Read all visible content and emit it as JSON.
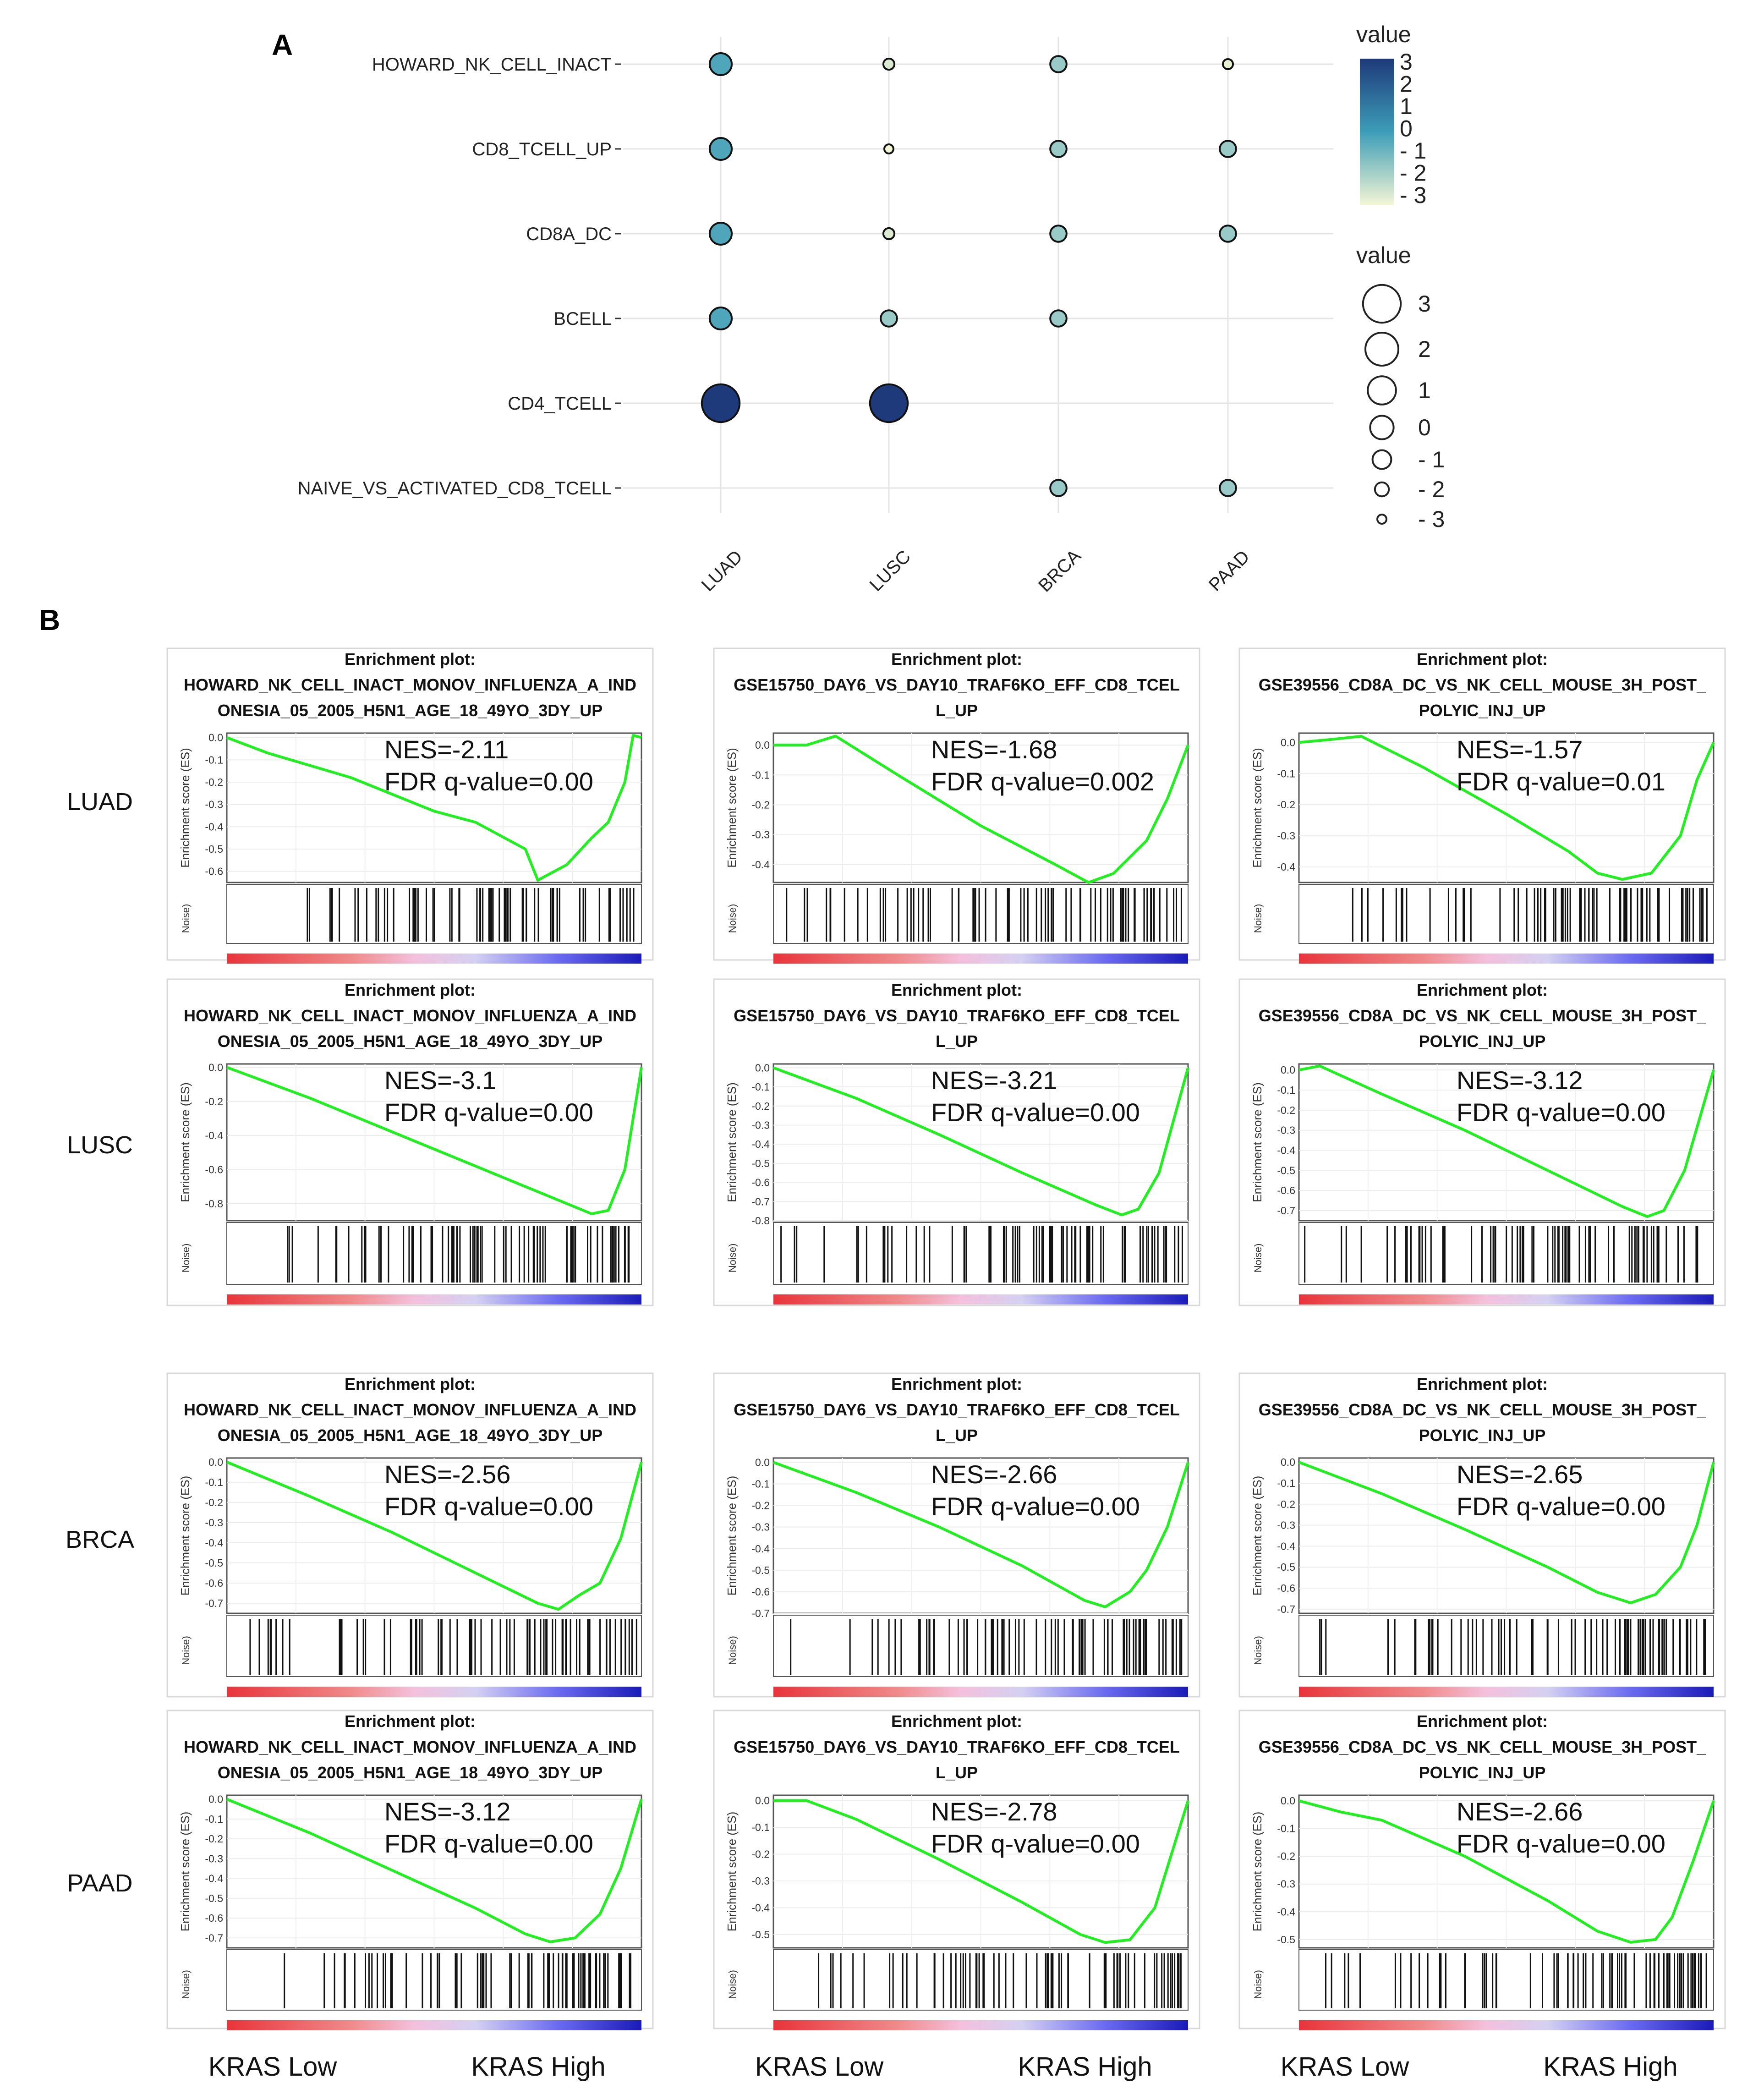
{
  "figure": {
    "panel_a_label": "A",
    "panel_b_label": "B"
  },
  "chart_data": [
    {
      "type": "scatter",
      "subtype": "bubble",
      "title": "",
      "xlabel": "",
      "ylabel": "",
      "categories_x": [
        "LUAD",
        "LUSC",
        "BRCA",
        "PAAD"
      ],
      "categories_y": [
        "HOWARD_NK_CELL_INACT",
        "CD8_TCELL_UP",
        "CD8A_DC",
        "BCELL",
        "CD4_TCELL",
        "NAIVE_VS_ACTIVATED_CD8_TCELL"
      ],
      "points": [
        {
          "x": "LUAD",
          "y": "HOWARD_NK_CELL_INACT",
          "value": -0.3
        },
        {
          "x": "LUSC",
          "y": "HOWARD_NK_CELL_INACT",
          "value": -2.6
        },
        {
          "x": "BRCA",
          "y": "HOWARD_NK_CELL_INACT",
          "value": -1.5
        },
        {
          "x": "PAAD",
          "y": "HOWARD_NK_CELL_INACT",
          "value": -2.8
        },
        {
          "x": "LUAD",
          "y": "CD8_TCELL_UP",
          "value": -0.3
        },
        {
          "x": "LUSC",
          "y": "CD8_TCELL_UP",
          "value": -3.0
        },
        {
          "x": "BRCA",
          "y": "CD8_TCELL_UP",
          "value": -1.5
        },
        {
          "x": "PAAD",
          "y": "CD8_TCELL_UP",
          "value": -1.5
        },
        {
          "x": "LUAD",
          "y": "CD8A_DC",
          "value": -0.3
        },
        {
          "x": "LUSC",
          "y": "CD8A_DC",
          "value": -2.6
        },
        {
          "x": "BRCA",
          "y": "CD8A_DC",
          "value": -1.5
        },
        {
          "x": "PAAD",
          "y": "CD8A_DC",
          "value": -1.5
        },
        {
          "x": "LUAD",
          "y": "BCELL",
          "value": -0.3
        },
        {
          "x": "LUSC",
          "y": "BCELL",
          "value": -1.5
        },
        {
          "x": "BRCA",
          "y": "BCELL",
          "value": -1.5
        },
        {
          "x": "LUAD",
          "y": "CD4_TCELL",
          "value": 3.0
        },
        {
          "x": "LUSC",
          "y": "CD4_TCELL",
          "value": 3.0
        },
        {
          "x": "BRCA",
          "y": "NAIVE_VS_ACTIVATED_CD8_TCELL",
          "value": -1.5
        },
        {
          "x": "PAAD",
          "y": "NAIVE_VS_ACTIVATED_CD8_TCELL",
          "value": -1.5
        }
      ],
      "legend_color": {
        "title": "value",
        "ticks": [
          "3",
          "2",
          "1",
          "0",
          "- 1",
          "- 2",
          "- 3"
        ],
        "range": [
          -3,
          3
        ],
        "low_color": "#f4f6d6",
        "mid_color": "#3d9db8",
        "high_color": "#1e3a7a"
      },
      "legend_size": {
        "title": "value",
        "labels": [
          "3",
          "2",
          "1",
          "0",
          "- 1",
          "- 2",
          "- 3"
        ],
        "values": [
          3,
          2,
          1,
          0,
          -1,
          -2,
          -3
        ]
      }
    },
    {
      "type": "line",
      "subtype": "gsea-enrichment-grid",
      "row_labels": [
        "LUAD",
        "LUSC",
        "BRCA",
        "PAAD"
      ],
      "column_titles": [
        [
          "Enrichment plot:",
          "HOWARD_NK_CELL_INACT_MONOV_INFLUENZA_A_IND",
          "ONESIA_05_2005_H5N1_AGE_18_49YO_3DY_UP"
        ],
        [
          "Enrichment plot:",
          "GSE15750_DAY6_VS_DAY10_TRAF6KO_EFF_CD8_TCEL",
          "L_UP"
        ],
        [
          "Enrichment plot:",
          "GSE39556_CD8A_DC_VS_NK_CELL_MOUSE_3H_POST_",
          "POLYIC_INJ_UP"
        ]
      ],
      "ylabel": "Enrichment score (ES)",
      "noise_label": "Noise)",
      "x_labels": [
        "KRAS Low",
        "KRAS High"
      ],
      "curve_color": "#22ee22",
      "panels": [
        {
          "row": "LUAD",
          "col": 0,
          "nes_text": "NES=-2.11",
          "fdr_text": "FDR q-value=0.00",
          "y_ticks": [
            "0.0",
            "-0.1",
            "-0.2",
            "-0.3",
            "-0.4",
            "-0.5",
            "-0.6"
          ],
          "ymin": -0.65,
          "ymax": 0.02,
          "curve_x": [
            0,
            0.1,
            0.3,
            0.5,
            0.6,
            0.72,
            0.75,
            0.82,
            0.88,
            0.92,
            0.96,
            0.98,
            1.0
          ],
          "curve_y": [
            0,
            -0.07,
            -0.18,
            -0.33,
            -0.38,
            -0.5,
            -0.64,
            -0.57,
            -0.45,
            -0.38,
            -0.2,
            0.01,
            0
          ]
        },
        {
          "row": "LUAD",
          "col": 1,
          "nes_text": "NES=-1.68",
          "fdr_text": "FDR q-value=0.002",
          "y_ticks": [
            "0.0",
            "-0.1",
            "-0.2",
            "-0.3",
            "-0.4"
          ],
          "ymin": -0.46,
          "ymax": 0.04,
          "curve_x": [
            0,
            0.08,
            0.15,
            0.3,
            0.5,
            0.68,
            0.76,
            0.82,
            0.9,
            0.95,
            1.0
          ],
          "curve_y": [
            0,
            0,
            0.03,
            -0.1,
            -0.27,
            -0.4,
            -0.46,
            -0.43,
            -0.32,
            -0.18,
            0
          ]
        },
        {
          "row": "LUAD",
          "col": 2,
          "nes_text": "NES=-1.57",
          "fdr_text": "FDR q-value=0.01",
          "y_ticks": [
            "0.0",
            "-0.1",
            "-0.2",
            "-0.3",
            "-0.4"
          ],
          "ymin": -0.45,
          "ymax": 0.03,
          "curve_x": [
            0,
            0.08,
            0.15,
            0.3,
            0.5,
            0.65,
            0.72,
            0.78,
            0.85,
            0.92,
            0.96,
            1.0
          ],
          "curve_y": [
            0,
            0.01,
            0.02,
            -0.08,
            -0.23,
            -0.35,
            -0.42,
            -0.44,
            -0.42,
            -0.3,
            -0.12,
            0
          ]
        },
        {
          "row": "LUSC",
          "col": 0,
          "nes_text": "NES=-3.1",
          "fdr_text": "FDR q-value=0.00",
          "y_ticks": [
            "0.0",
            "-0.2",
            "-0.4",
            "-0.6",
            "-0.8"
          ],
          "ymin": -0.9,
          "ymax": 0.02,
          "curve_x": [
            0,
            0.2,
            0.4,
            0.6,
            0.8,
            0.88,
            0.92,
            0.96,
            1.0
          ],
          "curve_y": [
            0,
            -0.18,
            -0.38,
            -0.58,
            -0.78,
            -0.86,
            -0.84,
            -0.6,
            0
          ]
        },
        {
          "row": "LUSC",
          "col": 1,
          "nes_text": "NES=-3.21",
          "fdr_text": "FDR q-value=0.00",
          "y_ticks": [
            "0.0",
            "-0.1",
            "-0.2",
            "-0.3",
            "-0.4",
            "-0.5",
            "-0.6",
            "-0.7",
            "-0.8"
          ],
          "ymin": -0.8,
          "ymax": 0.02,
          "curve_x": [
            0,
            0.2,
            0.4,
            0.6,
            0.78,
            0.84,
            0.88,
            0.93,
            1.0
          ],
          "curve_y": [
            0,
            -0.16,
            -0.35,
            -0.55,
            -0.72,
            -0.77,
            -0.74,
            -0.55,
            0
          ]
        },
        {
          "row": "LUSC",
          "col": 2,
          "nes_text": "NES=-3.12",
          "fdr_text": "FDR q-value=0.00",
          "y_ticks": [
            "0.0",
            "-0.1",
            "-0.2",
            "-0.3",
            "-0.4",
            "-0.5",
            "-0.6",
            "-0.7"
          ],
          "ymin": -0.75,
          "ymax": 0.03,
          "curve_x": [
            0,
            0.05,
            0.2,
            0.4,
            0.6,
            0.78,
            0.84,
            0.88,
            0.93,
            1.0
          ],
          "curve_y": [
            0,
            0.02,
            -0.12,
            -0.3,
            -0.5,
            -0.68,
            -0.73,
            -0.7,
            -0.5,
            0
          ]
        },
        {
          "row": "BRCA",
          "col": 0,
          "nes_text": "NES=-2.56",
          "fdr_text": "FDR q-value=0.00",
          "y_ticks": [
            "0.0",
            "-0.1",
            "-0.2",
            "-0.3",
            "-0.4",
            "-0.5",
            "-0.6",
            "-0.7"
          ],
          "ymin": -0.75,
          "ymax": 0.02,
          "curve_x": [
            0,
            0.2,
            0.4,
            0.6,
            0.75,
            0.8,
            0.85,
            0.9,
            0.95,
            1.0
          ],
          "curve_y": [
            0,
            -0.17,
            -0.35,
            -0.55,
            -0.7,
            -0.73,
            -0.66,
            -0.6,
            -0.38,
            0
          ]
        },
        {
          "row": "BRCA",
          "col": 1,
          "nes_text": "NES=-2.66",
          "fdr_text": "FDR q-value=0.00",
          "y_ticks": [
            "0.0",
            "-0.1",
            "-0.2",
            "-0.3",
            "-0.4",
            "-0.5",
            "-0.6",
            "-0.7"
          ],
          "ymin": -0.7,
          "ymax": 0.02,
          "curve_x": [
            0,
            0.2,
            0.4,
            0.6,
            0.75,
            0.8,
            0.86,
            0.9,
            0.95,
            1.0
          ],
          "curve_y": [
            0,
            -0.14,
            -0.3,
            -0.48,
            -0.64,
            -0.67,
            -0.6,
            -0.5,
            -0.3,
            0
          ]
        },
        {
          "row": "BRCA",
          "col": 2,
          "nes_text": "NES=-2.65",
          "fdr_text": "FDR q-value=0.00",
          "y_ticks": [
            "0.0",
            "-0.1",
            "-0.2",
            "-0.3",
            "-0.4",
            "-0.5",
            "-0.6",
            "-0.7"
          ],
          "ymin": -0.72,
          "ymax": 0.02,
          "curve_x": [
            0,
            0.2,
            0.4,
            0.6,
            0.72,
            0.8,
            0.86,
            0.92,
            0.96,
            1.0
          ],
          "curve_y": [
            0,
            -0.15,
            -0.32,
            -0.5,
            -0.62,
            -0.67,
            -0.63,
            -0.5,
            -0.3,
            0
          ]
        },
        {
          "row": "PAAD",
          "col": 0,
          "nes_text": "NES=-3.12",
          "fdr_text": "FDR q-value=0.00",
          "y_ticks": [
            "0.0",
            "-0.1",
            "-0.2",
            "-0.3",
            "-0.4",
            "-0.5",
            "-0.6",
            "-0.7"
          ],
          "ymin": -0.75,
          "ymax": 0.02,
          "curve_x": [
            0,
            0.2,
            0.4,
            0.6,
            0.72,
            0.78,
            0.84,
            0.9,
            0.95,
            1.0
          ],
          "curve_y": [
            0,
            -0.17,
            -0.36,
            -0.55,
            -0.68,
            -0.72,
            -0.7,
            -0.58,
            -0.35,
            0
          ]
        },
        {
          "row": "PAAD",
          "col": 1,
          "nes_text": "NES=-2.78",
          "fdr_text": "FDR q-value=0.00",
          "y_ticks": [
            "0.0",
            "-0.1",
            "-0.2",
            "-0.3",
            "-0.4",
            "-0.5"
          ],
          "ymin": -0.55,
          "ymax": 0.02,
          "curve_x": [
            0,
            0.08,
            0.2,
            0.4,
            0.6,
            0.74,
            0.8,
            0.86,
            0.92,
            0.96,
            1.0
          ],
          "curve_y": [
            0,
            0.0,
            -0.07,
            -0.22,
            -0.38,
            -0.5,
            -0.53,
            -0.52,
            -0.4,
            -0.2,
            0
          ]
        },
        {
          "row": "PAAD",
          "col": 2,
          "nes_text": "NES=-2.66",
          "fdr_text": "FDR q-value=0.00",
          "y_ticks": [
            "0.0",
            "-0.1",
            "-0.2",
            "-0.3",
            "-0.4",
            "-0.5"
          ],
          "ymin": -0.53,
          "ymax": 0.02,
          "curve_x": [
            0,
            0.1,
            0.2,
            0.4,
            0.6,
            0.72,
            0.8,
            0.86,
            0.9,
            0.95,
            1.0
          ],
          "curve_y": [
            0,
            -0.04,
            -0.07,
            -0.2,
            -0.36,
            -0.47,
            -0.51,
            -0.5,
            -0.42,
            -0.22,
            0
          ]
        }
      ]
    }
  ]
}
